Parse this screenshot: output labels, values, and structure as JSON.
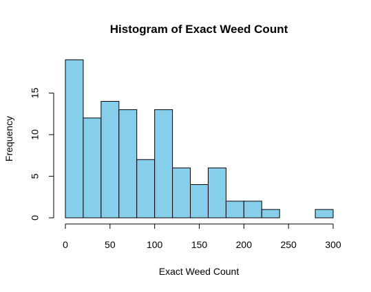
{
  "chart_data": {
    "type": "bar",
    "subtype": "histogram",
    "title": "Histogram of Exact Weed Count",
    "xlabel": "Exact Weed Count",
    "ylabel": "Frequency",
    "bin_width": 20,
    "bins": [
      {
        "x0": 0,
        "x1": 20,
        "count": 19
      },
      {
        "x0": 20,
        "x1": 40,
        "count": 12
      },
      {
        "x0": 40,
        "x1": 60,
        "count": 14
      },
      {
        "x0": 60,
        "x1": 80,
        "count": 13
      },
      {
        "x0": 80,
        "x1": 100,
        "count": 7
      },
      {
        "x0": 100,
        "x1": 120,
        "count": 13
      },
      {
        "x0": 120,
        "x1": 140,
        "count": 6
      },
      {
        "x0": 140,
        "x1": 160,
        "count": 4
      },
      {
        "x0": 160,
        "x1": 180,
        "count": 6
      },
      {
        "x0": 180,
        "x1": 200,
        "count": 2
      },
      {
        "x0": 200,
        "x1": 220,
        "count": 2
      },
      {
        "x0": 220,
        "x1": 240,
        "count": 1
      },
      {
        "x0": 240,
        "x1": 260,
        "count": 0
      },
      {
        "x0": 260,
        "x1": 280,
        "count": 0
      },
      {
        "x0": 280,
        "x1": 300,
        "count": 1
      }
    ],
    "xlim": [
      0,
      300
    ],
    "ylim": [
      0,
      19
    ],
    "x_ticks": [
      0,
      50,
      100,
      150,
      200,
      250,
      300
    ],
    "y_ticks": [
      0,
      5,
      10,
      15
    ],
    "grid": false,
    "legend": "none"
  },
  "colors": {
    "bar_fill": "#87CEEB",
    "bar_stroke": "#000000",
    "background": "#ffffff",
    "text": "#000000"
  }
}
